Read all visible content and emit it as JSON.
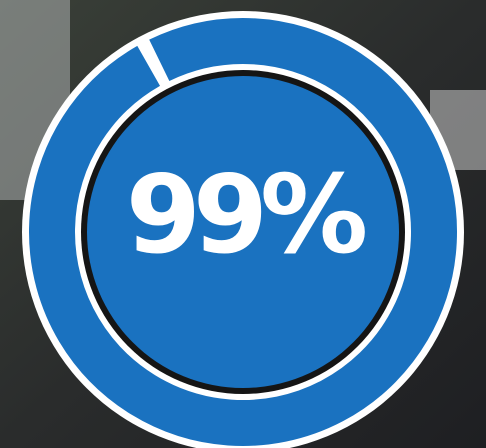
{
  "chart_data": {
    "type": "gauge",
    "values": [
      99
    ],
    "value_labels": [
      "99%"
    ],
    "color": "#1a72c0",
    "max": 100
  }
}
